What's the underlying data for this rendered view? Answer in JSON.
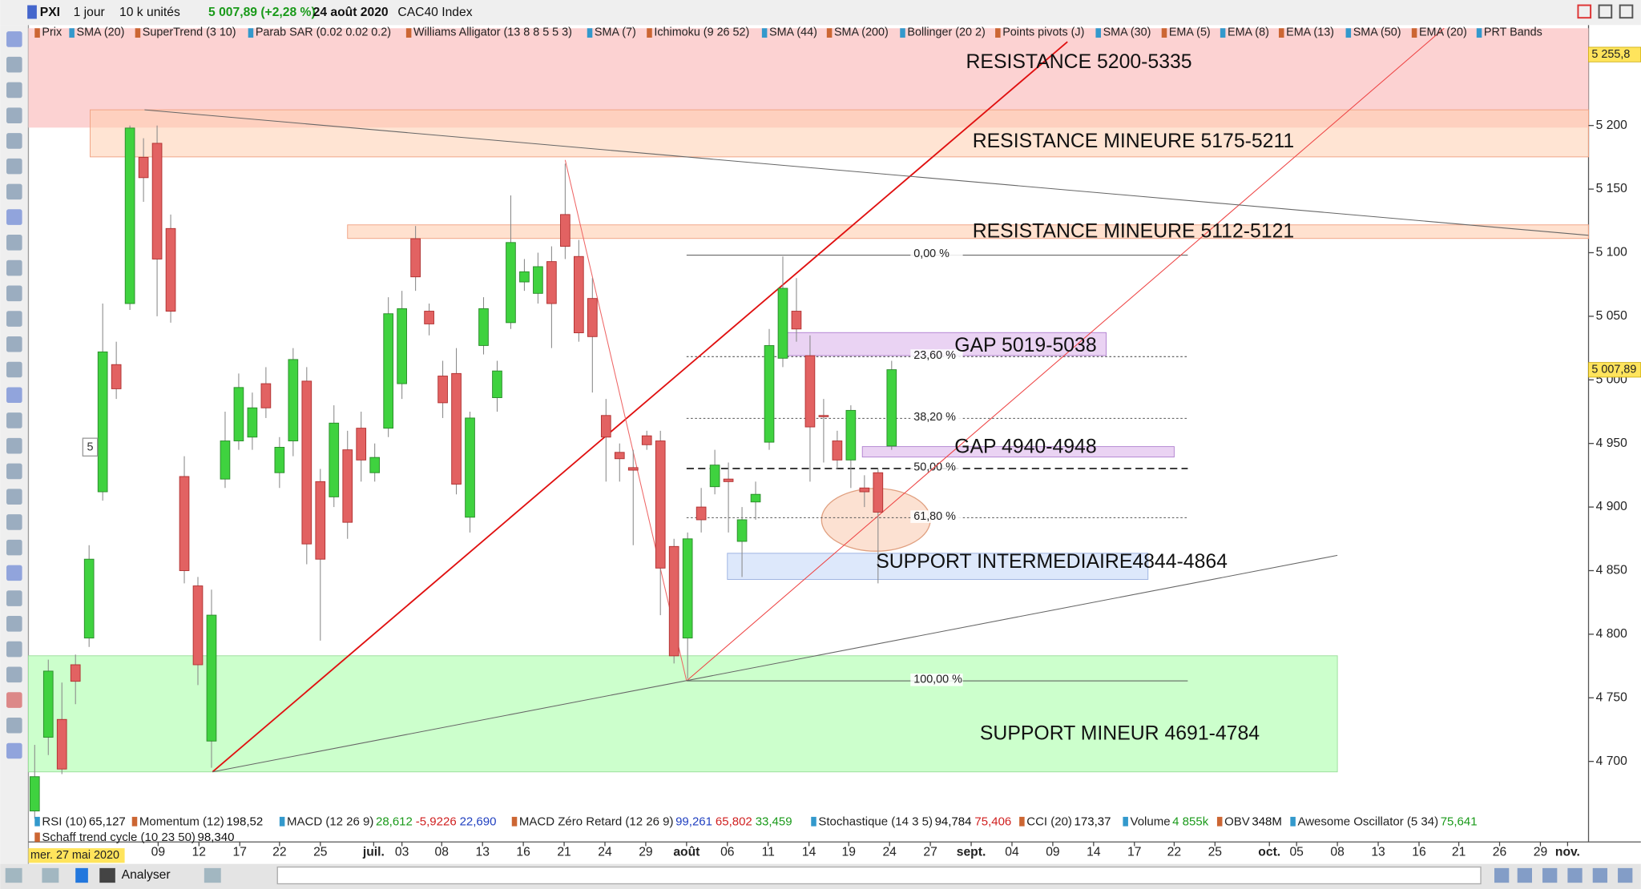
{
  "toolbar": {
    "symbol": "PXI",
    "period": "1 jour",
    "units": "10 k unités",
    "quote": "5 007,89 (+2,28 %)",
    "date": "24 août 2020",
    "instrument": "CAC40 Index"
  },
  "indicators_top": [
    "Prix",
    "SMA (20)",
    "SuperTrend (3 10)",
    "Parab SAR (0.02 0.02 0.2)",
    "Williams Alligator (13 8 8 5 5 3)",
    "SMA (7)",
    "Ichimoku (9 26 52)",
    "SMA (44)",
    "SMA (200)",
    "Bollinger (20 2)",
    "Points pivots (J)",
    "SMA (30)",
    "EMA (5)",
    "EMA (8)",
    "EMA (13)",
    "SMA (50)",
    "EMA (20)",
    "PRT Bands"
  ],
  "indicators_bottom": [
    {
      "name": "RSI (10)",
      "values": [
        "65,127"
      ]
    },
    {
      "name": "Momentum (12)",
      "values": [
        "198,52"
      ]
    },
    {
      "name": "MACD (12 26 9)",
      "values": [
        "28,612",
        "-5,9226",
        "22,690"
      ]
    },
    {
      "name": "MACD Zéro Retard (12 26 9)",
      "values": [
        "99,261",
        "65,802",
        "33,459"
      ]
    },
    {
      "name": "Stochastique (14 3 5)",
      "values": [
        "94,784",
        "75,406"
      ]
    },
    {
      "name": "CCI (20)",
      "values": [
        "173,37"
      ]
    },
    {
      "name": "Volume",
      "values": [
        "4 855k"
      ]
    },
    {
      "name": "OBV",
      "values": [
        "348M"
      ]
    },
    {
      "name": "Awesome Oscillator (5 34)",
      "values": [
        "75,641"
      ]
    },
    {
      "name": "Schaff trend cycle (10 23 50)",
      "values": [
        "98,340"
      ]
    }
  ],
  "chart": {
    "ylim": [
      4650,
      5280
    ],
    "yticks": [
      {
        "value": 4700,
        "label": "4 700"
      },
      {
        "value": 4750,
        "label": "4 750"
      },
      {
        "value": 4800,
        "label": "4 800"
      },
      {
        "value": 4850,
        "label": "4 850"
      },
      {
        "value": 4900,
        "label": "4 900"
      },
      {
        "value": 4950,
        "label": "4 950"
      },
      {
        "value": 5000,
        "label": "5 000"
      },
      {
        "value": 5050,
        "label": "5 050"
      },
      {
        "value": 5100,
        "label": "5 100"
      },
      {
        "value": 5150,
        "label": "5 150"
      },
      {
        "value": 5200,
        "label": "5 200"
      }
    ],
    "xlabels": [
      "09",
      "12",
      "17",
      "22",
      "25",
      "juil.",
      "03",
      "08",
      "13",
      "16",
      "21",
      "24",
      "29",
      "août",
      "06",
      "11",
      "14",
      "19",
      "24",
      "27",
      "sept.",
      "04",
      "09",
      "14",
      "17",
      "22",
      "25",
      "oct.",
      "05",
      "08",
      "13",
      "16",
      "21",
      "26",
      "29",
      "nov."
    ],
    "price_labels": [
      {
        "value": 5255.8,
        "label": "5 255,8"
      },
      {
        "value": 5007.89,
        "label": "5 007,89"
      }
    ],
    "candles": [
      {
        "open": 4661,
        "high": 4713,
        "low": 4655,
        "close": 4688
      },
      {
        "open": 4719,
        "high": 4780,
        "low": 4705,
        "close": 4771
      },
      {
        "open": 4733,
        "high": 4762,
        "low": 4690,
        "close": 4694
      },
      {
        "open": 4776,
        "high": 4784,
        "low": 4745,
        "close": 4763
      },
      {
        "open": 4797,
        "high": 4870,
        "low": 4790,
        "close": 4859
      },
      {
        "open": 4912,
        "high": 5060,
        "low": 4905,
        "close": 5022
      },
      {
        "open": 5012,
        "high": 5030,
        "low": 4985,
        "close": 4993
      },
      {
        "open": 5060,
        "high": 5200,
        "low": 5055,
        "close": 5198
      },
      {
        "open": 5175,
        "high": 5190,
        "low": 5140,
        "close": 5159
      },
      {
        "open": 5186,
        "high": 5200,
        "low": 5050,
        "close": 5095
      },
      {
        "open": 5119,
        "high": 5130,
        "low": 5045,
        "close": 5054
      },
      {
        "open": 4924,
        "high": 4940,
        "low": 4840,
        "close": 4850
      },
      {
        "open": 4838,
        "high": 4845,
        "low": 4760,
        "close": 4776
      },
      {
        "open": 4716,
        "high": 4835,
        "low": 4695,
        "close": 4815
      },
      {
        "open": 4922,
        "high": 4975,
        "low": 4915,
        "close": 4952
      },
      {
        "open": 4952,
        "high": 5005,
        "low": 4945,
        "close": 4994
      },
      {
        "open": 4955,
        "high": 4990,
        "low": 4945,
        "close": 4978
      },
      {
        "open": 4997,
        "high": 5010,
        "low": 4970,
        "close": 4978
      },
      {
        "open": 4927,
        "high": 4955,
        "low": 4915,
        "close": 4947
      },
      {
        "open": 4952,
        "high": 5025,
        "low": 4940,
        "close": 5016
      },
      {
        "open": 4999,
        "high": 5010,
        "low": 4855,
        "close": 4871
      },
      {
        "open": 4920,
        "high": 4930,
        "low": 4795,
        "close": 4859
      },
      {
        "open": 4908,
        "high": 4980,
        "low": 4900,
        "close": 4966
      },
      {
        "open": 4945,
        "high": 4960,
        "low": 4875,
        "close": 4888
      },
      {
        "open": 4962,
        "high": 4975,
        "low": 4920,
        "close": 4937
      },
      {
        "open": 4927,
        "high": 4950,
        "low": 4920,
        "close": 4939
      },
      {
        "open": 4962,
        "high": 5065,
        "low": 4955,
        "close": 5052
      },
      {
        "open": 4997,
        "high": 5070,
        "low": 4985,
        "close": 5056
      },
      {
        "open": 5111,
        "high": 5121,
        "low": 5070,
        "close": 5081
      },
      {
        "open": 5054,
        "high": 5060,
        "low": 5035,
        "close": 5044
      },
      {
        "open": 5003,
        "high": 5015,
        "low": 4970,
        "close": 4982
      },
      {
        "open": 5005,
        "high": 5025,
        "low": 4910,
        "close": 4918
      },
      {
        "open": 4892,
        "high": 4975,
        "low": 4880,
        "close": 4970
      },
      {
        "open": 5027,
        "high": 5065,
        "low": 5020,
        "close": 5056
      },
      {
        "open": 4986,
        "high": 5015,
        "low": 4975,
        "close": 5007
      },
      {
        "open": 5045,
        "high": 5145,
        "low": 5040,
        "close": 5108
      },
      {
        "open": 5077,
        "high": 5095,
        "low": 5070,
        "close": 5085
      },
      {
        "open": 5068,
        "high": 5100,
        "low": 5060,
        "close": 5089
      },
      {
        "open": 5093,
        "high": 5105,
        "low": 5025,
        "close": 5060
      },
      {
        "open": 5130,
        "high": 5170,
        "low": 5095,
        "close": 5105
      },
      {
        "open": 5097,
        "high": 5110,
        "low": 5030,
        "close": 5037
      },
      {
        "open": 5064,
        "high": 5080,
        "low": 4990,
        "close": 5034
      },
      {
        "open": 4972,
        "high": 4985,
        "low": 4920,
        "close": 4955
      },
      {
        "open": 4943,
        "high": 4950,
        "low": 4920,
        "close": 4938
      },
      {
        "open": 4931,
        "high": 4945,
        "low": 4870,
        "close": 4929
      },
      {
        "open": 4956,
        "high": 4960,
        "low": 4945,
        "close": 4949
      },
      {
        "open": 4952,
        "high": 4960,
        "low": 4815,
        "close": 4852
      },
      {
        "open": 4869,
        "high": 4875,
        "low": 4777,
        "close": 4783
      },
      {
        "open": 4797,
        "high": 4880,
        "low": 4765,
        "close": 4875
      },
      {
        "open": 4900,
        "high": 4915,
        "low": 4880,
        "close": 4890
      },
      {
        "open": 4916,
        "high": 4945,
        "low": 4910,
        "close": 4933
      },
      {
        "open": 4922,
        "high": 4935,
        "low": 4880,
        "close": 4920
      },
      {
        "open": 4873,
        "high": 4900,
        "low": 4845,
        "close": 4890
      },
      {
        "open": 4904,
        "high": 4920,
        "low": 4890,
        "close": 4910
      },
      {
        "open": 4951,
        "high": 5040,
        "low": 4945,
        "close": 5027
      },
      {
        "open": 5017,
        "high": 5097,
        "low": 5010,
        "close": 5072
      },
      {
        "open": 5054,
        "high": 5080,
        "low": 5030,
        "close": 5040
      },
      {
        "open": 5019,
        "high": 5035,
        "low": 4920,
        "close": 4963
      },
      {
        "open": 4972,
        "high": 4985,
        "low": 4935,
        "close": 4971
      },
      {
        "open": 4952,
        "high": 4960,
        "low": 4930,
        "close": 4937
      },
      {
        "open": 4937,
        "high": 4980,
        "low": 4915,
        "close": 4976
      },
      {
        "open": 4915,
        "high": 4925,
        "low": 4900,
        "close": 4912
      },
      {
        "open": 4927,
        "high": 4930,
        "low": 4840,
        "close": 4896
      },
      {
        "open": 4948,
        "high": 5015,
        "low": 4945,
        "close": 5008
      }
    ]
  },
  "zones": [
    "RESISTANCE 5200-5335",
    "RESISTANCE MINEURE 5175-5211",
    "RESISTANCE MINEURE 5112-5121",
    "GAP 5019-5038",
    "GAP 4940-4948",
    "SUPPORT INTERMEDIAIRE4844-4864",
    "SUPPORT MINEUR 4691-4784"
  ],
  "fibonacci": [
    "0,00 %",
    "23,60 %",
    "38,20 %",
    "50,00 %",
    "61,80 %",
    "100,00 %"
  ],
  "marker": "5",
  "cursor_date": "mer. 27 mai 2020",
  "analyse_button": "Analyser"
}
